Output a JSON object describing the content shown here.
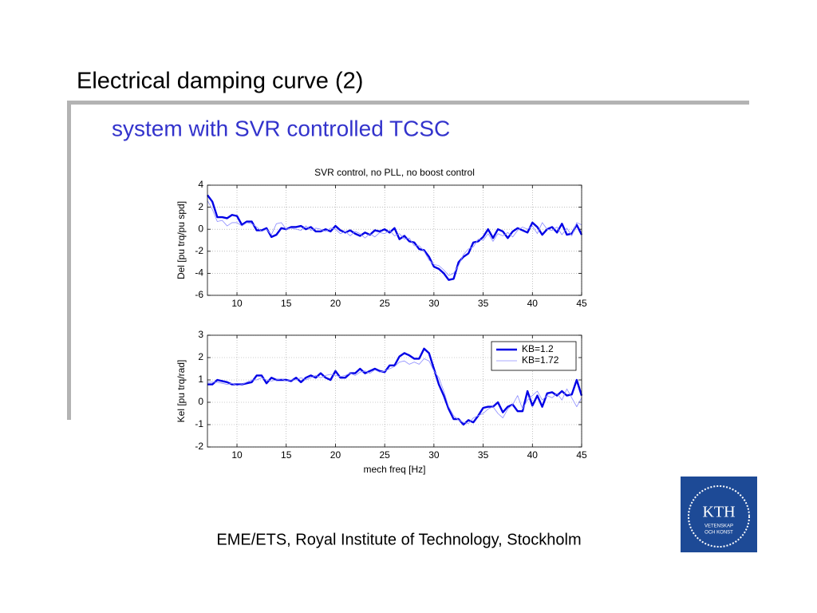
{
  "slide": {
    "title": "Electrical damping curve (2)",
    "subtitle": "system with SVR controlled TCSC",
    "footer": "EME/ETS, Royal Institute of Technology, Stockholm",
    "logo": {
      "name": "KTH",
      "line1": "VETENSKAP",
      "line2": "OCH KONST"
    }
  },
  "chart_data": [
    {
      "type": "line",
      "title": "SVR control, no PLL, no boost control",
      "ylabel": "Del [pu trq/pu spd]",
      "xlim": [
        7,
        45
      ],
      "xticks": [
        10,
        15,
        20,
        25,
        30,
        35,
        40,
        45
      ],
      "ylim": [
        -6,
        4
      ],
      "yticks": [
        -6,
        -4,
        -2,
        0,
        2,
        4
      ],
      "grid": true,
      "x": [
        7,
        7.5,
        8,
        8.5,
        9,
        9.5,
        10,
        10.5,
        11,
        11.5,
        12,
        12.5,
        13,
        13.5,
        14,
        14.5,
        15,
        15.5,
        16,
        16.5,
        17,
        17.5,
        18,
        18.5,
        19,
        19.5,
        20,
        20.5,
        21,
        21.5,
        22,
        22.5,
        23,
        23.5,
        24,
        24.5,
        25,
        25.5,
        26,
        26.5,
        27,
        27.5,
        28,
        28.5,
        29,
        29.5,
        30,
        30.5,
        31,
        31.5,
        32,
        32.5,
        33,
        33.5,
        34,
        34.5,
        35,
        35.5,
        36,
        36.5,
        37,
        37.5,
        38,
        38.5,
        39,
        39.5,
        40,
        40.5,
        41,
        41.5,
        42,
        42.5,
        43,
        43.5,
        44,
        44.5,
        45
      ],
      "series": [
        {
          "color": "#0000e6",
          "linewidth": 2.4,
          "values": [
            3.1,
            2.5,
            1.1,
            1.1,
            1.0,
            1.3,
            1.2,
            0.4,
            0.7,
            0.7,
            -0.1,
            -0.1,
            0.1,
            -0.7,
            -0.5,
            0.1,
            0.0,
            0.2,
            0.2,
            0.3,
            0.0,
            0.2,
            -0.2,
            -0.2,
            0.0,
            -0.2,
            0.3,
            -0.1,
            -0.3,
            -0.1,
            -0.4,
            -0.6,
            -0.3,
            -0.5,
            -0.1,
            -0.2,
            0.0,
            -0.3,
            0.1,
            -0.9,
            -0.6,
            -1.1,
            -1.2,
            -1.8,
            -1.9,
            -2.5,
            -3.4,
            -3.6,
            -4.0,
            -4.6,
            -4.5,
            -3.0,
            -2.5,
            -2.2,
            -1.2,
            -1.1,
            -0.7,
            0.0,
            -0.8,
            0.0,
            -0.2,
            -0.8,
            -0.2,
            0.1,
            -0.1,
            -0.3,
            0.6,
            0.2,
            -0.5,
            0.0,
            0.2,
            -0.3,
            0.5,
            -0.5,
            -0.4,
            0.4,
            -0.5
          ]
        },
        {
          "color": "#8c8cff",
          "linewidth": 0.8,
          "values": [
            2.6,
            1.8,
            0.7,
            0.8,
            0.3,
            0.6,
            0.6,
            0.3,
            0.6,
            0.5,
            0.2,
            -0.2,
            0.0,
            -0.5,
            0.5,
            0.6,
            0.0,
            0.1,
            0.0,
            -0.1,
            0.3,
            -0.1,
            0.1,
            0.0,
            -0.2,
            0.1,
            0.0,
            -0.4,
            -0.2,
            -0.6,
            -0.2,
            -0.4,
            -0.8,
            -0.4,
            -0.7,
            -0.3,
            -0.4,
            -0.1,
            -0.6,
            -0.4,
            -0.9,
            -0.8,
            -1.5,
            -1.5,
            -2.0,
            -2.8,
            -3.2,
            -3.3,
            -3.7,
            -4.2,
            -4.0,
            -3.3,
            -2.3,
            -1.8,
            -1.6,
            -0.9,
            -1.0,
            -0.4,
            -1.1,
            -0.4,
            -0.6,
            -0.3,
            -0.7,
            -0.1,
            0.2,
            0.0,
            0.3,
            -0.4,
            0.6,
            0.0,
            -0.1,
            0.2,
            -0.5,
            0.1,
            -0.6,
            0.6,
            0.4
          ]
        }
      ]
    },
    {
      "type": "line",
      "ylabel": "Kel [pu trq/rad]",
      "xlabel": "mech freq [Hz]",
      "xlim": [
        7,
        45
      ],
      "xticks": [
        10,
        15,
        20,
        25,
        30,
        35,
        40,
        45
      ],
      "ylim": [
        -2,
        3
      ],
      "yticks": [
        -2,
        -1,
        0,
        1,
        2,
        3
      ],
      "grid": true,
      "legend": "upper right",
      "x": [
        7,
        7.5,
        8,
        8.5,
        9,
        9.5,
        10,
        10.5,
        11,
        11.5,
        12,
        12.5,
        13,
        13.5,
        14,
        14.5,
        15,
        15.5,
        16,
        16.5,
        17,
        17.5,
        18,
        18.5,
        19,
        19.5,
        20,
        20.5,
        21,
        21.5,
        22,
        22.5,
        23,
        23.5,
        24,
        24.5,
        25,
        25.5,
        26,
        26.5,
        27,
        27.5,
        28,
        28.5,
        29,
        29.5,
        30,
        30.5,
        31,
        31.5,
        32,
        32.5,
        33,
        33.5,
        34,
        34.5,
        35,
        35.5,
        36,
        36.5,
        37,
        37.5,
        38,
        38.5,
        39,
        39.5,
        40,
        40.5,
        41,
        41.5,
        42,
        42.5,
        43,
        43.5,
        44,
        44.5,
        45
      ],
      "series": [
        {
          "name": "KB=1.2",
          "color": "#0000e6",
          "linewidth": 2.4,
          "values": [
            0.8,
            0.8,
            1.0,
            0.95,
            0.9,
            0.8,
            0.8,
            0.8,
            0.85,
            0.9,
            1.2,
            1.2,
            0.85,
            1.1,
            1.0,
            1.0,
            1.0,
            0.95,
            1.1,
            0.9,
            1.1,
            1.2,
            1.1,
            1.3,
            1.1,
            1.0,
            1.4,
            1.1,
            1.1,
            1.3,
            1.3,
            1.5,
            1.3,
            1.4,
            1.5,
            1.4,
            1.35,
            1.65,
            1.65,
            2.05,
            2.2,
            2.1,
            1.95,
            1.95,
            2.4,
            2.2,
            1.5,
            0.8,
            0.3,
            -0.3,
            -0.75,
            -0.75,
            -1.0,
            -0.8,
            -0.9,
            -0.6,
            -0.25,
            -0.2,
            -0.2,
            0.0,
            -0.45,
            -0.2,
            -0.1,
            -0.4,
            -0.4,
            0.5,
            -0.15,
            0.3,
            -0.2,
            0.4,
            0.45,
            0.3,
            0.5,
            0.3,
            0.35,
            1.0,
            0.3
          ]
        },
        {
          "name": "KB=1.72",
          "color": "#8c8cff",
          "linewidth": 0.8,
          "values": [
            0.9,
            0.9,
            0.9,
            0.85,
            0.8,
            0.85,
            0.75,
            0.8,
            0.9,
            1.0,
            1.0,
            1.1,
            1.0,
            0.95,
            1.0,
            1.05,
            0.95,
            1.0,
            1.0,
            1.1,
            1.0,
            1.1,
            1.2,
            1.1,
            1.2,
            1.25,
            1.2,
            1.15,
            1.2,
            1.3,
            1.2,
            1.35,
            1.4,
            1.3,
            1.45,
            1.35,
            1.4,
            1.5,
            1.6,
            1.8,
            1.85,
            1.7,
            1.8,
            1.7,
            1.95,
            1.85,
            1.4,
            1.1,
            0.5,
            -0.2,
            -0.6,
            -0.8,
            -0.9,
            -0.95,
            -0.7,
            -0.6,
            -0.5,
            -0.3,
            -0.2,
            -0.5,
            -0.7,
            -0.3,
            -0.1,
            0.3,
            -0.3,
            0.1,
            0.3,
            0.5,
            0.1,
            0.3,
            0.2,
            0.4,
            0.1,
            0.6,
            0.2,
            -0.2,
            0.2
          ]
        }
      ]
    }
  ]
}
